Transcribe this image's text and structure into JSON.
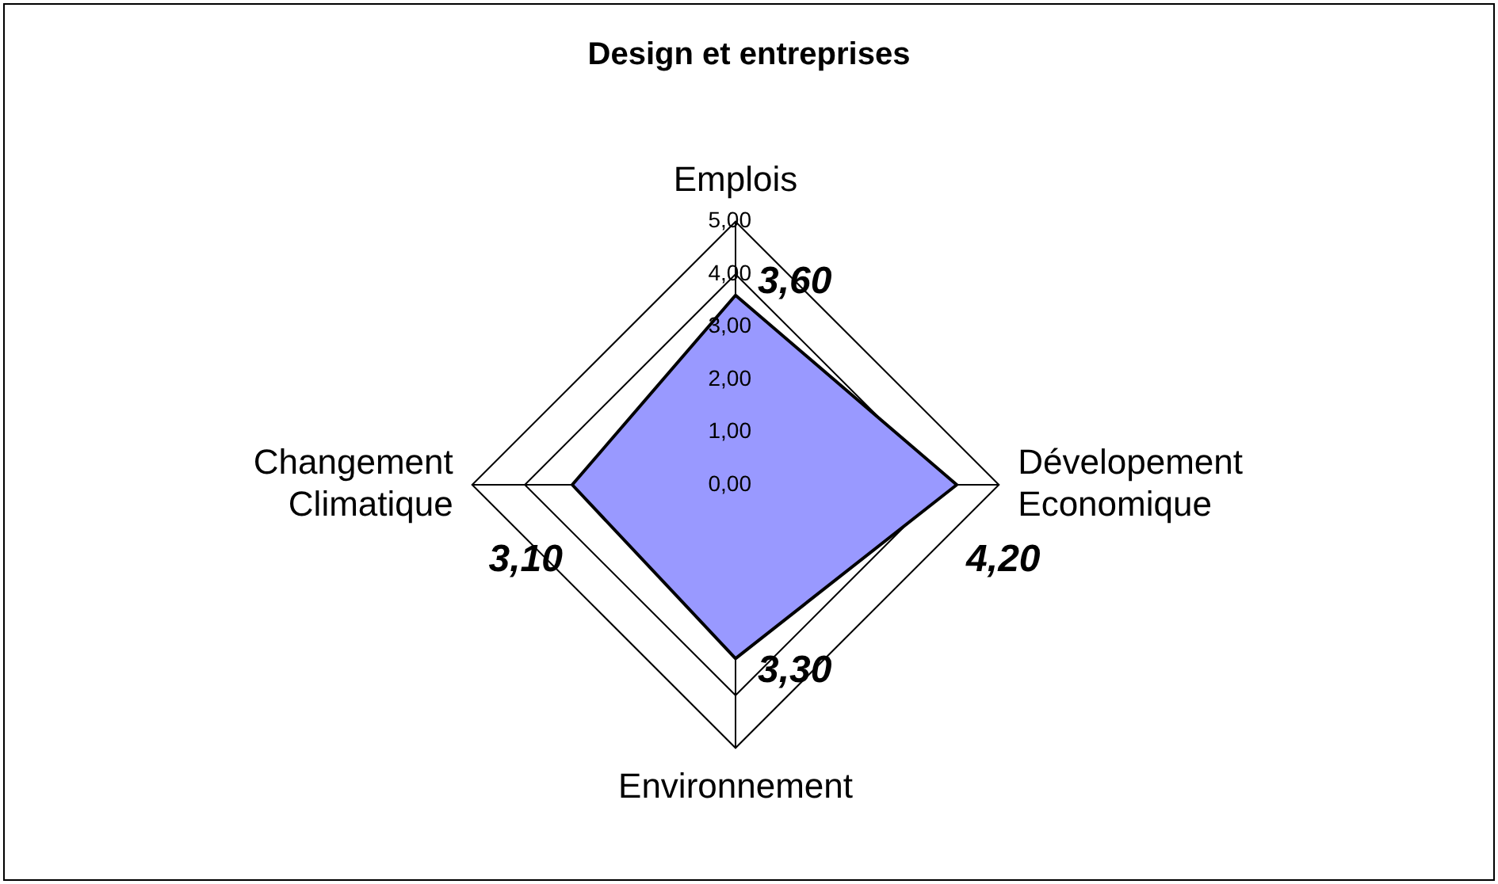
{
  "chart_data": {
    "type": "radar",
    "title": "Design et entreprises",
    "categories": [
      "Emplois",
      "Dévelopement Economique",
      "Environnement",
      "Changement Climatique"
    ],
    "series": [
      {
        "color": "#9999ff",
        "values": [
          3.6,
          4.2,
          3.3,
          3.1
        ],
        "value_labels": [
          "3,60",
          "4,20",
          "3,30",
          "3,10"
        ]
      }
    ],
    "ylim": [
      0,
      5
    ],
    "yticks": [
      {
        "value": 0,
        "label": "0,00"
      },
      {
        "value": 1,
        "label": "1,00"
      },
      {
        "value": 2,
        "label": "2,00"
      },
      {
        "value": 3,
        "label": "3,00"
      },
      {
        "value": 4,
        "label": "4,00"
      },
      {
        "value": 5,
        "label": "5,00"
      }
    ],
    "grid": true,
    "legend": false
  }
}
